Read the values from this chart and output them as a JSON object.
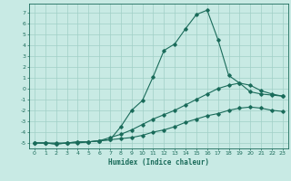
{
  "xlabel": "Humidex (Indice chaleur)",
  "ylabel": "",
  "xlim": [
    -0.5,
    23.5
  ],
  "ylim": [
    -5.5,
    7.8
  ],
  "yticks": [
    7,
    6,
    5,
    4,
    3,
    2,
    1,
    0,
    -1,
    -2,
    -3,
    -4,
    -5
  ],
  "xticks": [
    0,
    1,
    2,
    3,
    4,
    5,
    6,
    7,
    8,
    9,
    10,
    11,
    12,
    13,
    14,
    15,
    16,
    17,
    18,
    19,
    20,
    21,
    22,
    23
  ],
  "background_color": "#c8eae4",
  "grid_color": "#a0cfc7",
  "line_color": "#1a6b5a",
  "line1_x": [
    0,
    1,
    2,
    3,
    4,
    5,
    6,
    7,
    8,
    9,
    10,
    11,
    12,
    13,
    14,
    15,
    16,
    17,
    18,
    19,
    20,
    21,
    22,
    23
  ],
  "line1_y": [
    -5,
    -5,
    -5,
    -5,
    -4.9,
    -4.9,
    -4.8,
    -4.7,
    -4.6,
    -4.5,
    -4.3,
    -4.0,
    -3.8,
    -3.5,
    -3.1,
    -2.8,
    -2.5,
    -2.3,
    -2.0,
    -1.8,
    -1.7,
    -1.8,
    -2.0,
    -2.1
  ],
  "line2_x": [
    0,
    1,
    2,
    3,
    4,
    5,
    6,
    7,
    8,
    9,
    10,
    11,
    12,
    13,
    14,
    15,
    16,
    17,
    18,
    19,
    20,
    21,
    22,
    23
  ],
  "line2_y": [
    -5,
    -5,
    -5.1,
    -5,
    -5,
    -4.9,
    -4.8,
    -4.5,
    -4.2,
    -3.8,
    -3.3,
    -2.8,
    -2.4,
    -2.0,
    -1.5,
    -1.0,
    -0.5,
    0.0,
    0.3,
    0.5,
    0.3,
    -0.2,
    -0.5,
    -0.7
  ],
  "line3_x": [
    0,
    1,
    2,
    3,
    4,
    5,
    6,
    7,
    8,
    9,
    10,
    11,
    12,
    13,
    14,
    15,
    16,
    17,
    18,
    19,
    20,
    21,
    22,
    23
  ],
  "line3_y": [
    -5,
    -5,
    -5.1,
    -5,
    -4.9,
    -4.9,
    -4.8,
    -4.7,
    -3.5,
    -2.0,
    -1.1,
    1.1,
    3.5,
    4.1,
    5.5,
    6.8,
    7.2,
    4.5,
    1.2,
    0.5,
    -0.3,
    -0.5,
    -0.6,
    -0.7
  ]
}
